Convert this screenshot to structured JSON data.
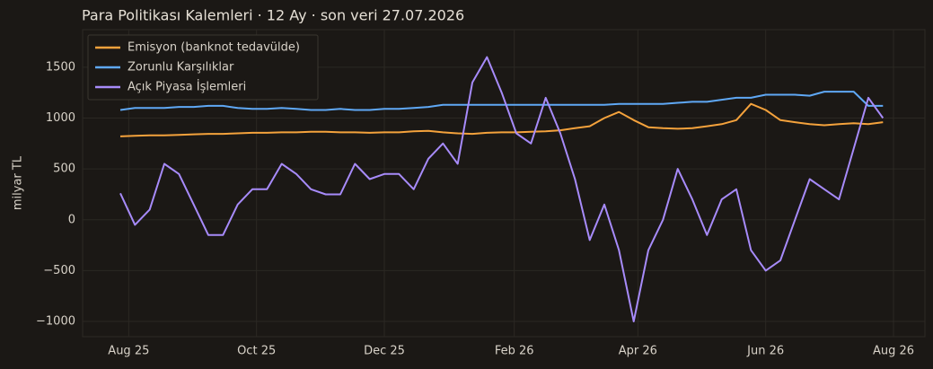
{
  "chart_data": {
    "type": "line",
    "title": "Para Politikası Kalemleri · 12 Ay · son veri 27.07.2026",
    "y_label": "milyar TL",
    "x": [
      "2025-07-28",
      "2025-08-04",
      "2025-08-11",
      "2025-08-18",
      "2025-08-25",
      "2025-09-01",
      "2025-09-08",
      "2025-09-15",
      "2025-09-22",
      "2025-09-29",
      "2025-10-06",
      "2025-10-13",
      "2025-10-20",
      "2025-10-27",
      "2025-11-03",
      "2025-11-10",
      "2025-11-17",
      "2025-11-24",
      "2025-12-01",
      "2025-12-08",
      "2025-12-15",
      "2025-12-22",
      "2025-12-29",
      "2026-01-05",
      "2026-01-12",
      "2026-01-19",
      "2026-01-26",
      "2026-02-02",
      "2026-02-09",
      "2026-02-16",
      "2026-02-23",
      "2026-03-02",
      "2026-03-09",
      "2026-03-16",
      "2026-03-23",
      "2026-03-30",
      "2026-04-06",
      "2026-04-13",
      "2026-04-20",
      "2026-04-27",
      "2026-05-04",
      "2026-05-11",
      "2026-05-18",
      "2026-05-25",
      "2026-06-01",
      "2026-06-08",
      "2026-06-15",
      "2026-06-22",
      "2026-06-29",
      "2026-07-06",
      "2026-07-13",
      "2026-07-20",
      "2026-07-27"
    ],
    "series": [
      {
        "name": "Emisyon (banknot tedavülde)",
        "color": "#f4a23c",
        "values": [
          820,
          825,
          830,
          830,
          835,
          840,
          845,
          845,
          850,
          855,
          855,
          860,
          860,
          865,
          865,
          860,
          860,
          855,
          860,
          860,
          870,
          875,
          860,
          850,
          845,
          855,
          860,
          860,
          865,
          870,
          880,
          900,
          920,
          1000,
          1060,
          980,
          910,
          900,
          895,
          900,
          920,
          940,
          980,
          1140,
          1080,
          980,
          960,
          940,
          930,
          940,
          950,
          940,
          960
        ]
      },
      {
        "name": "Zorunlu Karşılıklar",
        "color": "#5fa8f5",
        "values": [
          1080,
          1100,
          1100,
          1100,
          1110,
          1110,
          1120,
          1120,
          1100,
          1090,
          1090,
          1100,
          1090,
          1080,
          1080,
          1090,
          1080,
          1080,
          1090,
          1090,
          1100,
          1110,
          1130,
          1130,
          1130,
          1130,
          1130,
          1130,
          1130,
          1130,
          1130,
          1130,
          1130,
          1130,
          1140,
          1140,
          1140,
          1140,
          1150,
          1160,
          1160,
          1180,
          1200,
          1200,
          1230,
          1230,
          1230,
          1220,
          1260,
          1260,
          1260,
          1120,
          1120
        ]
      },
      {
        "name": "Açık Piyasa İşlemleri",
        "color": "#a78bfa",
        "values": [
          260,
          -50,
          100,
          550,
          450,
          150,
          -150,
          -150,
          150,
          300,
          300,
          550,
          450,
          300,
          250,
          250,
          550,
          400,
          450,
          450,
          300,
          600,
          750,
          550,
          1350,
          1600,
          1250,
          850,
          750,
          1200,
          850,
          400,
          -200,
          150,
          -300,
          -1000,
          -300,
          0,
          500,
          200,
          -150,
          200,
          300,
          -300,
          -500,
          -400,
          0,
          400,
          300,
          200,
          700,
          1200,
          1000
        ]
      }
    ],
    "xlim": [
      "2025-07-10",
      "2026-08-16"
    ],
    "xticks": [
      {
        "value": "2025-08-01",
        "label": "Aug 25"
      },
      {
        "value": "2025-10-01",
        "label": "Oct 25"
      },
      {
        "value": "2025-12-01",
        "label": "Dec 25"
      },
      {
        "value": "2026-02-01",
        "label": "Feb 26"
      },
      {
        "value": "2026-04-01",
        "label": "Apr 26"
      },
      {
        "value": "2026-06-01",
        "label": "Jun 26"
      },
      {
        "value": "2026-08-01",
        "label": "Aug 26"
      }
    ],
    "ylim": [
      -1150,
      1870
    ],
    "yticks": [
      {
        "value": -1000,
        "label": "−1000"
      },
      {
        "value": -500,
        "label": "−500"
      },
      0,
      500,
      1000,
      1500
    ],
    "grid": true,
    "legend": "upper left"
  }
}
